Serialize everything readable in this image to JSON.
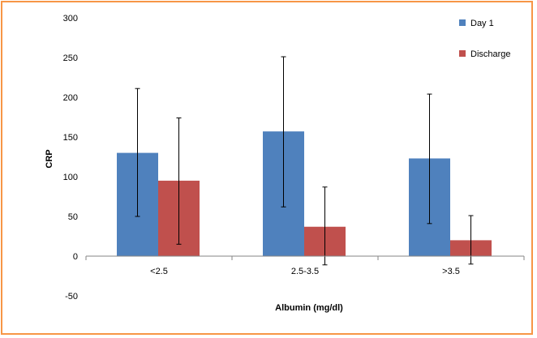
{
  "chart_data": {
    "type": "bar",
    "xlabel": "Albumin (mg/dl)",
    "ylabel": "CRP",
    "ylim": [
      -50,
      300
    ],
    "yticks": [
      -50,
      0,
      50,
      100,
      150,
      200,
      250,
      300
    ],
    "grid": false,
    "legend_position": "top-right",
    "categories": [
      "<2.5",
      "2.5-3.5",
      ">3.5"
    ],
    "series": [
      {
        "name": "Day 1",
        "color": "#4f81bd",
        "values": [
          130,
          157,
          123
        ],
        "error_low": [
          50,
          62,
          41
        ],
        "error_high": [
          211,
          251,
          204
        ]
      },
      {
        "name": "Discharge",
        "color": "#c0504d",
        "values": [
          95,
          37,
          20
        ],
        "error_low": [
          15,
          -11,
          -10
        ],
        "error_high": [
          174,
          87,
          51
        ]
      }
    ]
  }
}
